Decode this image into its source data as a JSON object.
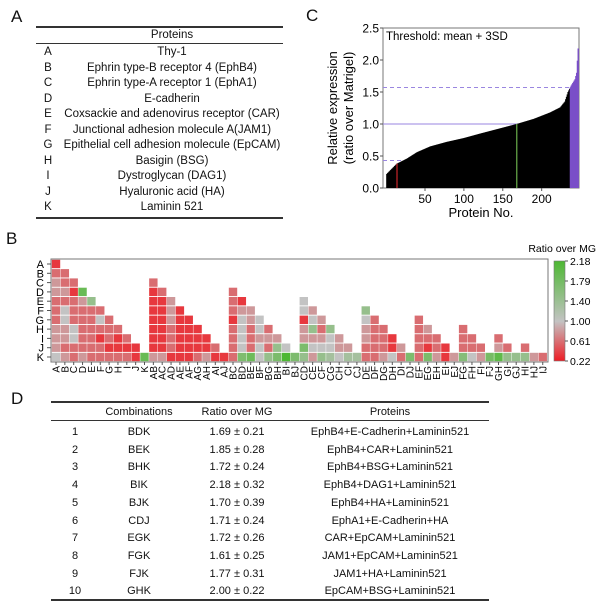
{
  "panels": {
    "a": "A",
    "b": "B",
    "c": "C",
    "d": "D"
  },
  "table_a": {
    "header": "Proteins",
    "rows": [
      {
        "key": "A",
        "name": "Thy-1"
      },
      {
        "key": "B",
        "name": "Ephrin type-B receptor 4 (EphB4)"
      },
      {
        "key": "C",
        "name": "Ephrin type-A receptor 1 (EphA1)"
      },
      {
        "key": "D",
        "name": "E-cadherin"
      },
      {
        "key": "E",
        "name": "Coxsackie and adenovirus receptor (CAR)"
      },
      {
        "key": "F",
        "name": "Junctional adhesion molecule A(JAM1)"
      },
      {
        "key": "G",
        "name": "Epithelial cell adhesion molecule (EpCAM)"
      },
      {
        "key": "H",
        "name": "Basigin (BSG)"
      },
      {
        "key": "I",
        "name": "Dystroglycan (DAG1)"
      },
      {
        "key": "J",
        "name": "Hyaluronic acid (HA)"
      },
      {
        "key": "K",
        "name": "Laminin 521"
      }
    ]
  },
  "table_d": {
    "headers": {
      "combinations": "Combinations",
      "ratio": "Ratio over MG",
      "proteins": "Proteins"
    },
    "rows": [
      {
        "n": "1",
        "combo": "BDK",
        "ratio": "1.69 ± 0.21",
        "proteins": "EphB4+E-Cadherin+Laminin521"
      },
      {
        "n": "2",
        "combo": "BEK",
        "ratio": "1.85 ± 0.28",
        "proteins": "EphB4+CAR+Laminin521"
      },
      {
        "n": "3",
        "combo": "BHK",
        "ratio": "1.72 ± 0.24",
        "proteins": "EphB4+BSG+Laminin521"
      },
      {
        "n": "4",
        "combo": "BIK",
        "ratio": "2.18 ± 0.32",
        "proteins": "EphB4+DAG1+Laminin521"
      },
      {
        "n": "5",
        "combo": "BJK",
        "ratio": "1.70 ± 0.39",
        "proteins": "EphB4+HA+Laminin521"
      },
      {
        "n": "6",
        "combo": "CDJ",
        "ratio": "1.71 ± 0.24",
        "proteins": "EphA1+E-Cadherin+HA"
      },
      {
        "n": "7",
        "combo": "EGK",
        "ratio": "1.72 ± 0.26",
        "proteins": "CAR+EpCAM+Laminin521"
      },
      {
        "n": "8",
        "combo": "FGK",
        "ratio": "1.61 ± 0.25",
        "proteins": "JAM1+EpCAM+Laminin521"
      },
      {
        "n": "9",
        "combo": "FJK",
        "ratio": "1.77 ± 0.31",
        "proteins": "JAM1+HA+Laminin521"
      },
      {
        "n": "10",
        "combo": "GHK",
        "ratio": "2.00 ± 0.22",
        "proteins": "EpCAM+BSG+Laminin521"
      }
    ]
  },
  "chart_data": [
    {
      "type": "heatmap",
      "rows": [
        "A",
        "B",
        "C",
        "D",
        "E",
        "F",
        "G",
        "H",
        "I",
        "J",
        "K"
      ],
      "colorbar": {
        "title": "Ratio over MG",
        "ticks": [
          "2.18",
          "1.79",
          "1.40",
          "1.00",
          "0.61",
          "0.22"
        ],
        "range": [
          0.22,
          2.18
        ],
        "colors": {
          "low": "#ee1c24",
          "mid": "#c3c3c3",
          "high": "#4db833"
        }
      },
      "columns": [
        {
          "label": "A",
          "values": [
            0.35,
            0.6,
            0.8,
            0.8,
            0.6,
            0.6,
            0.6,
            0.8,
            0.8,
            0.8,
            1.0
          ]
        },
        {
          "label": "B",
          "values": [
            0.6,
            0.6,
            0.8,
            0.6,
            1.0,
            1.0,
            0.8,
            0.8,
            0.6,
            0.8
          ]
        },
        {
          "label": "C",
          "values": [
            0.6,
            0.35,
            0.6,
            0.6,
            0.6,
            1.0,
            1.0,
            0.6,
            0.6
          ]
        },
        {
          "label": "D",
          "values": [
            1.9,
            0.8,
            0.6,
            0.6,
            0.6,
            0.6,
            0.6,
            0.8
          ]
        },
        {
          "label": "E",
          "values": [
            1.45,
            0.6,
            0.6,
            0.6,
            0.6,
            0.6,
            0.6
          ]
        },
        {
          "label": "F",
          "values": [
            0.6,
            1.0,
            0.6,
            0.35,
            0.6,
            0.6
          ]
        },
        {
          "label": "G",
          "values": [
            0.6,
            0.6,
            0.6,
            0.35,
            0.6
          ]
        },
        {
          "label": "H",
          "values": [
            0.6,
            0.35,
            0.35,
            0.6
          ]
        },
        {
          "label": "I",
          "values": [
            0.6,
            0.35,
            0.6
          ]
        },
        {
          "label": "J",
          "values": [
            0.35,
            0.35
          ]
        },
        {
          "label": "K",
          "values": [
            1.9
          ]
        },
        {
          "label": "AB",
          "values": [
            0.6,
            0.35,
            0.35,
            0.35,
            0.35,
            0.35,
            0.35,
            0.35,
            0.8
          ]
        },
        {
          "label": "AC",
          "values": [
            0.6,
            0.35,
            0.35,
            0.35,
            0.35,
            0.35,
            0.35,
            0.8
          ]
        },
        {
          "label": "AD",
          "values": [
            0.8,
            0.8,
            0.8,
            0.6,
            0.6,
            0.6,
            0.35
          ]
        },
        {
          "label": "AE",
          "values": [
            0.35,
            0.35,
            0.35,
            0.35,
            0.35,
            0.35
          ]
        },
        {
          "label": "AF",
          "values": [
            0.35,
            0.35,
            0.35,
            0.35,
            0.35
          ]
        },
        {
          "label": "AG",
          "values": [
            0.35,
            0.35,
            0.35,
            0.6
          ]
        },
        {
          "label": "AH",
          "values": [
            0.35,
            0.35,
            0.8
          ]
        },
        {
          "label": "AI",
          "values": [
            0.6,
            0.35
          ]
        },
        {
          "label": "AJ",
          "values": [
            0.35
          ]
        },
        {
          "label": "BC",
          "values": [
            0.6,
            0.6,
            0.6,
            0.35,
            0.6,
            0.6,
            0.6,
            0.6
          ]
        },
        {
          "label": "BD",
          "values": [
            0.35,
            0.8,
            1.0,
            1.0,
            1.0,
            1.0,
            1.69
          ]
        },
        {
          "label": "BE",
          "values": [
            0.8,
            0.8,
            0.6,
            0.6,
            0.6,
            1.85
          ]
        },
        {
          "label": "BF",
          "values": [
            1.0,
            1.0,
            0.8,
            1.0,
            1.0
          ]
        },
        {
          "label": "BG",
          "values": [
            0.6,
            0.8,
            0.6,
            1.45
          ]
        },
        {
          "label": "BH",
          "values": [
            0.8,
            1.45,
            1.72
          ]
        },
        {
          "label": "BI",
          "values": [
            1.0,
            2.18
          ]
        },
        {
          "label": "BJ",
          "values": [
            1.7
          ]
        },
        {
          "label": "CD",
          "values": [
            1.0,
            1.0,
            0.35,
            0.8,
            0.8,
            1.71,
            1.45
          ]
        },
        {
          "label": "CE",
          "values": [
            0.8,
            1.0,
            1.45,
            0.8,
            1.0,
            0.8
          ]
        },
        {
          "label": "CF",
          "values": [
            0.8,
            0.6,
            0.8,
            1.0,
            1.45
          ]
        },
        {
          "label": "CG",
          "values": [
            1.45,
            1.0,
            1.0,
            1.3
          ]
        },
        {
          "label": "CH",
          "values": [
            0.8,
            0.8,
            1.0
          ]
        },
        {
          "label": "CI",
          "values": [
            0.8,
            1.3
          ]
        },
        {
          "label": "CJ",
          "values": [
            1.3
          ]
        },
        {
          "label": "DE",
          "values": [
            1.45,
            1.0,
            0.8,
            0.8,
            0.6,
            0.6
          ]
        },
        {
          "label": "DF",
          "values": [
            0.6,
            0.6,
            0.6,
            0.6,
            0.6
          ]
        },
        {
          "label": "DG",
          "values": [
            0.6,
            0.6,
            0.6,
            0.8
          ]
        },
        {
          "label": "DH",
          "values": [
            0.35,
            0.35,
            1.0
          ]
        },
        {
          "label": "DI",
          "values": [
            0.8,
            0.6
          ]
        },
        {
          "label": "DJ",
          "values": [
            1.7
          ]
        },
        {
          "label": "EF",
          "values": [
            0.6,
            0.6,
            0.6,
            0.6,
            0.6
          ]
        },
        {
          "label": "EG",
          "values": [
            0.8,
            0.6,
            0.35,
            1.72
          ]
        },
        {
          "label": "EH",
          "values": [
            0.6,
            0.6,
            0.8
          ]
        },
        {
          "label": "EI",
          "values": [
            0.35,
            0.35
          ]
        },
        {
          "label": "EJ",
          "values": [
            0.8
          ]
        },
        {
          "label": "FG",
          "values": [
            0.6,
            0.6,
            0.6,
            1.61
          ]
        },
        {
          "label": "FH",
          "values": [
            0.6,
            0.6,
            1.0
          ]
        },
        {
          "label": "FI",
          "values": [
            0.6,
            0.8
          ]
        },
        {
          "label": "FJ",
          "values": [
            1.77
          ]
        },
        {
          "label": "GH",
          "values": [
            0.6,
            0.8,
            2.0
          ]
        },
        {
          "label": "GI",
          "values": [
            0.6,
            1.45
          ]
        },
        {
          "label": "GJ",
          "values": [
            1.45
          ]
        },
        {
          "label": "HI",
          "values": [
            0.6,
            1.45
          ]
        },
        {
          "label": "HJ",
          "values": [
            0.8
          ]
        },
        {
          "label": "IJ",
          "values": [
            0.6
          ]
        }
      ]
    },
    {
      "type": "bar",
      "annotation": "Threshold: mean + 3SD",
      "ylabel": [
        "Relative expression",
        "(ratio over Matrigel)"
      ],
      "xlabel": "Protein No.",
      "ylim": [
        0,
        2.5
      ],
      "xlim": [
        -4,
        248
      ],
      "yticks": [
        "0.0",
        "0.5",
        "1.0",
        "1.5",
        "2.0",
        "2.5"
      ],
      "xticks": [
        "50",
        "100",
        "150",
        "200"
      ],
      "grid": false,
      "mean_line": 1.0,
      "threshold_upper": 1.57,
      "threshold_lower": 0.43,
      "bar_color": "#000000",
      "above_threshold_color": "#7a4fc8",
      "threshold_line_color": "#9a86e0",
      "markers": [
        {
          "x": 14,
          "color": "#c8242a"
        },
        {
          "x": 168,
          "color": "#6ab04c"
        }
      ],
      "curve": [
        [
          1,
          0.22
        ],
        [
          5,
          0.27
        ],
        [
          14,
          0.38
        ],
        [
          27,
          0.46
        ],
        [
          40,
          0.56
        ],
        [
          57,
          0.65
        ],
        [
          78,
          0.72
        ],
        [
          100,
          0.78
        ],
        [
          121,
          0.85
        ],
        [
          143,
          0.92
        ],
        [
          168,
          1.0
        ],
        [
          190,
          1.08
        ],
        [
          211,
          1.18
        ],
        [
          224,
          1.26
        ],
        [
          230,
          1.35
        ],
        [
          234,
          1.5
        ],
        [
          238,
          1.6
        ],
        [
          243,
          1.7
        ],
        [
          245,
          1.8
        ],
        [
          247,
          2.18
        ]
      ]
    }
  ]
}
